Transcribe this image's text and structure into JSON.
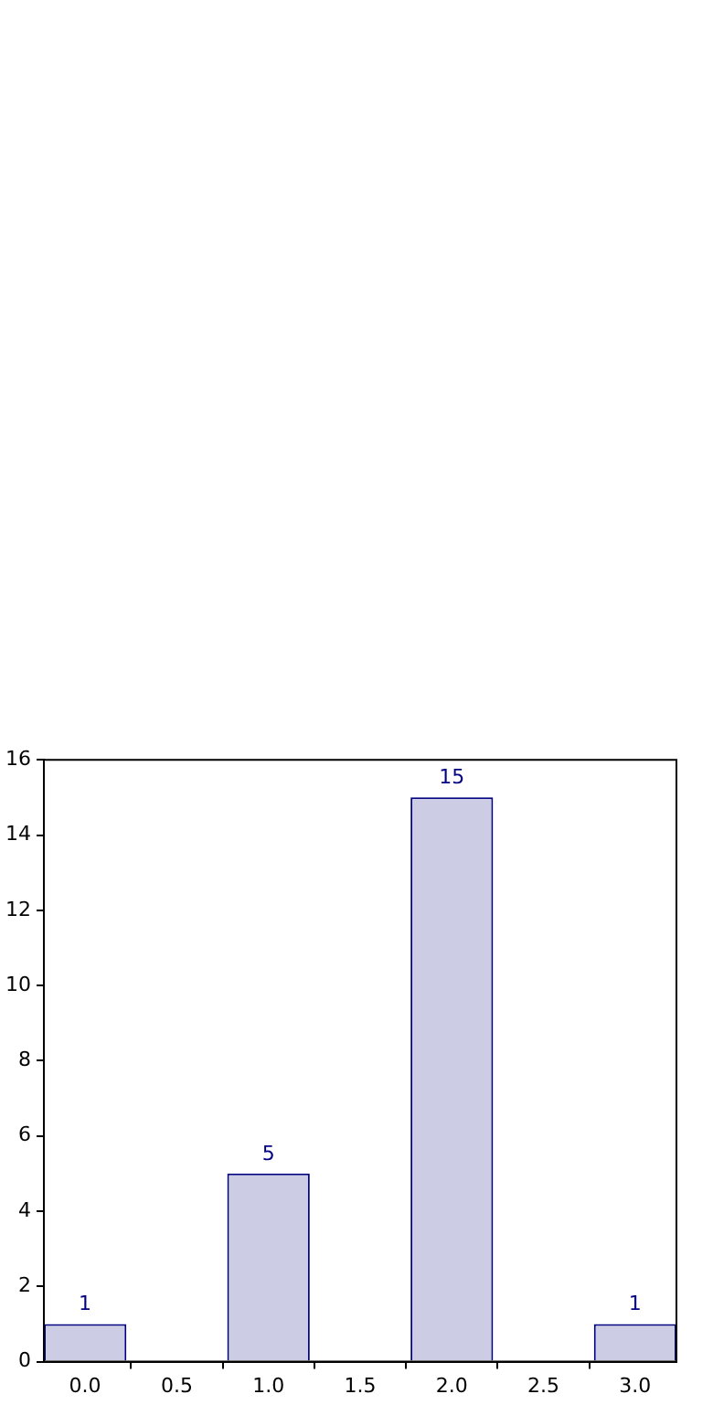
{
  "chart_data": {
    "type": "bar",
    "x": [
      0,
      1,
      2,
      3
    ],
    "values": [
      1,
      5,
      15,
      1
    ],
    "color": "#cccce5",
    "data_labels": true,
    "xlim": [
      -0.225,
      3.225
    ],
    "xticks": [
      {
        "value": 0,
        "label": "0.0"
      },
      {
        "value": 0.5,
        "label": "0.5"
      },
      {
        "value": 1,
        "label": "1.0"
      },
      {
        "value": 1.5,
        "label": "1.5"
      },
      {
        "value": 2,
        "label": "2.0"
      },
      {
        "value": 2.5,
        "label": "2.5"
      },
      {
        "value": 3,
        "label": "3.0"
      }
    ],
    "ylim": [
      0,
      16
    ],
    "yticks": [
      0,
      2,
      4,
      6,
      8,
      10,
      12,
      14,
      16
    ],
    "grid": false
  }
}
